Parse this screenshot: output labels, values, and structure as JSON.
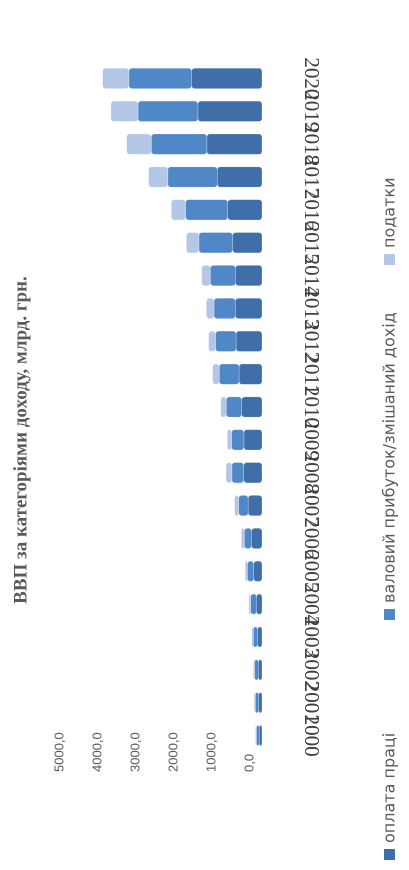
{
  "chart_data": {
    "type": "stacked_bar",
    "title": "ВВП за категоріями доходу, млрд. грн.",
    "categories": [
      "2000",
      "2001",
      "2002",
      "2003",
      "2004",
      "2005",
      "2006",
      "2007",
      "2008",
      "2009",
      "2010",
      "2011",
      "2012",
      "2013",
      "2014",
      "2015",
      "2016",
      "2017",
      "2018",
      "2019",
      "2020"
    ],
    "series": [
      {
        "name": "оплата праці",
        "color": "#3f6ea8",
        "values": [
          72,
          86,
          97,
          116,
          145,
          219,
          275,
          365,
          482,
          477,
          537,
          604,
          682,
          702,
          697,
          771,
          903,
          1177,
          1451,
          1687,
          1853
        ]
      },
      {
        "name": "валовий прибуток/змішаний дохід",
        "color": "#5087c7",
        "values": [
          74,
          90,
          98,
          113,
          152,
          165,
          191,
          248,
          311,
          323,
          403,
          520,
          540,
          561,
          663,
          889,
          1108,
          1302,
          1462,
          1576,
          1650
        ]
      },
      {
        "name": "податки",
        "color": "#b4c7e7",
        "values": [
          24,
          28,
          30,
          38,
          48,
          57,
          78,
          108,
          155,
          113,
          143,
          176,
          183,
          202,
          227,
          329,
          374,
          505,
          648,
          712,
          691
        ]
      }
    ],
    "ylim": [
      0,
      5000
    ],
    "yticks": [
      {
        "value": 0,
        "label": "0,0"
      },
      {
        "value": 1000,
        "label": "1000,0"
      },
      {
        "value": 2000,
        "label": "2000,0"
      },
      {
        "value": 3000,
        "label": "3000,0"
      },
      {
        "value": 4000,
        "label": "4000,0"
      },
      {
        "value": 5000,
        "label": "5000,0"
      }
    ],
    "grid": false,
    "legend": "bottom"
  }
}
